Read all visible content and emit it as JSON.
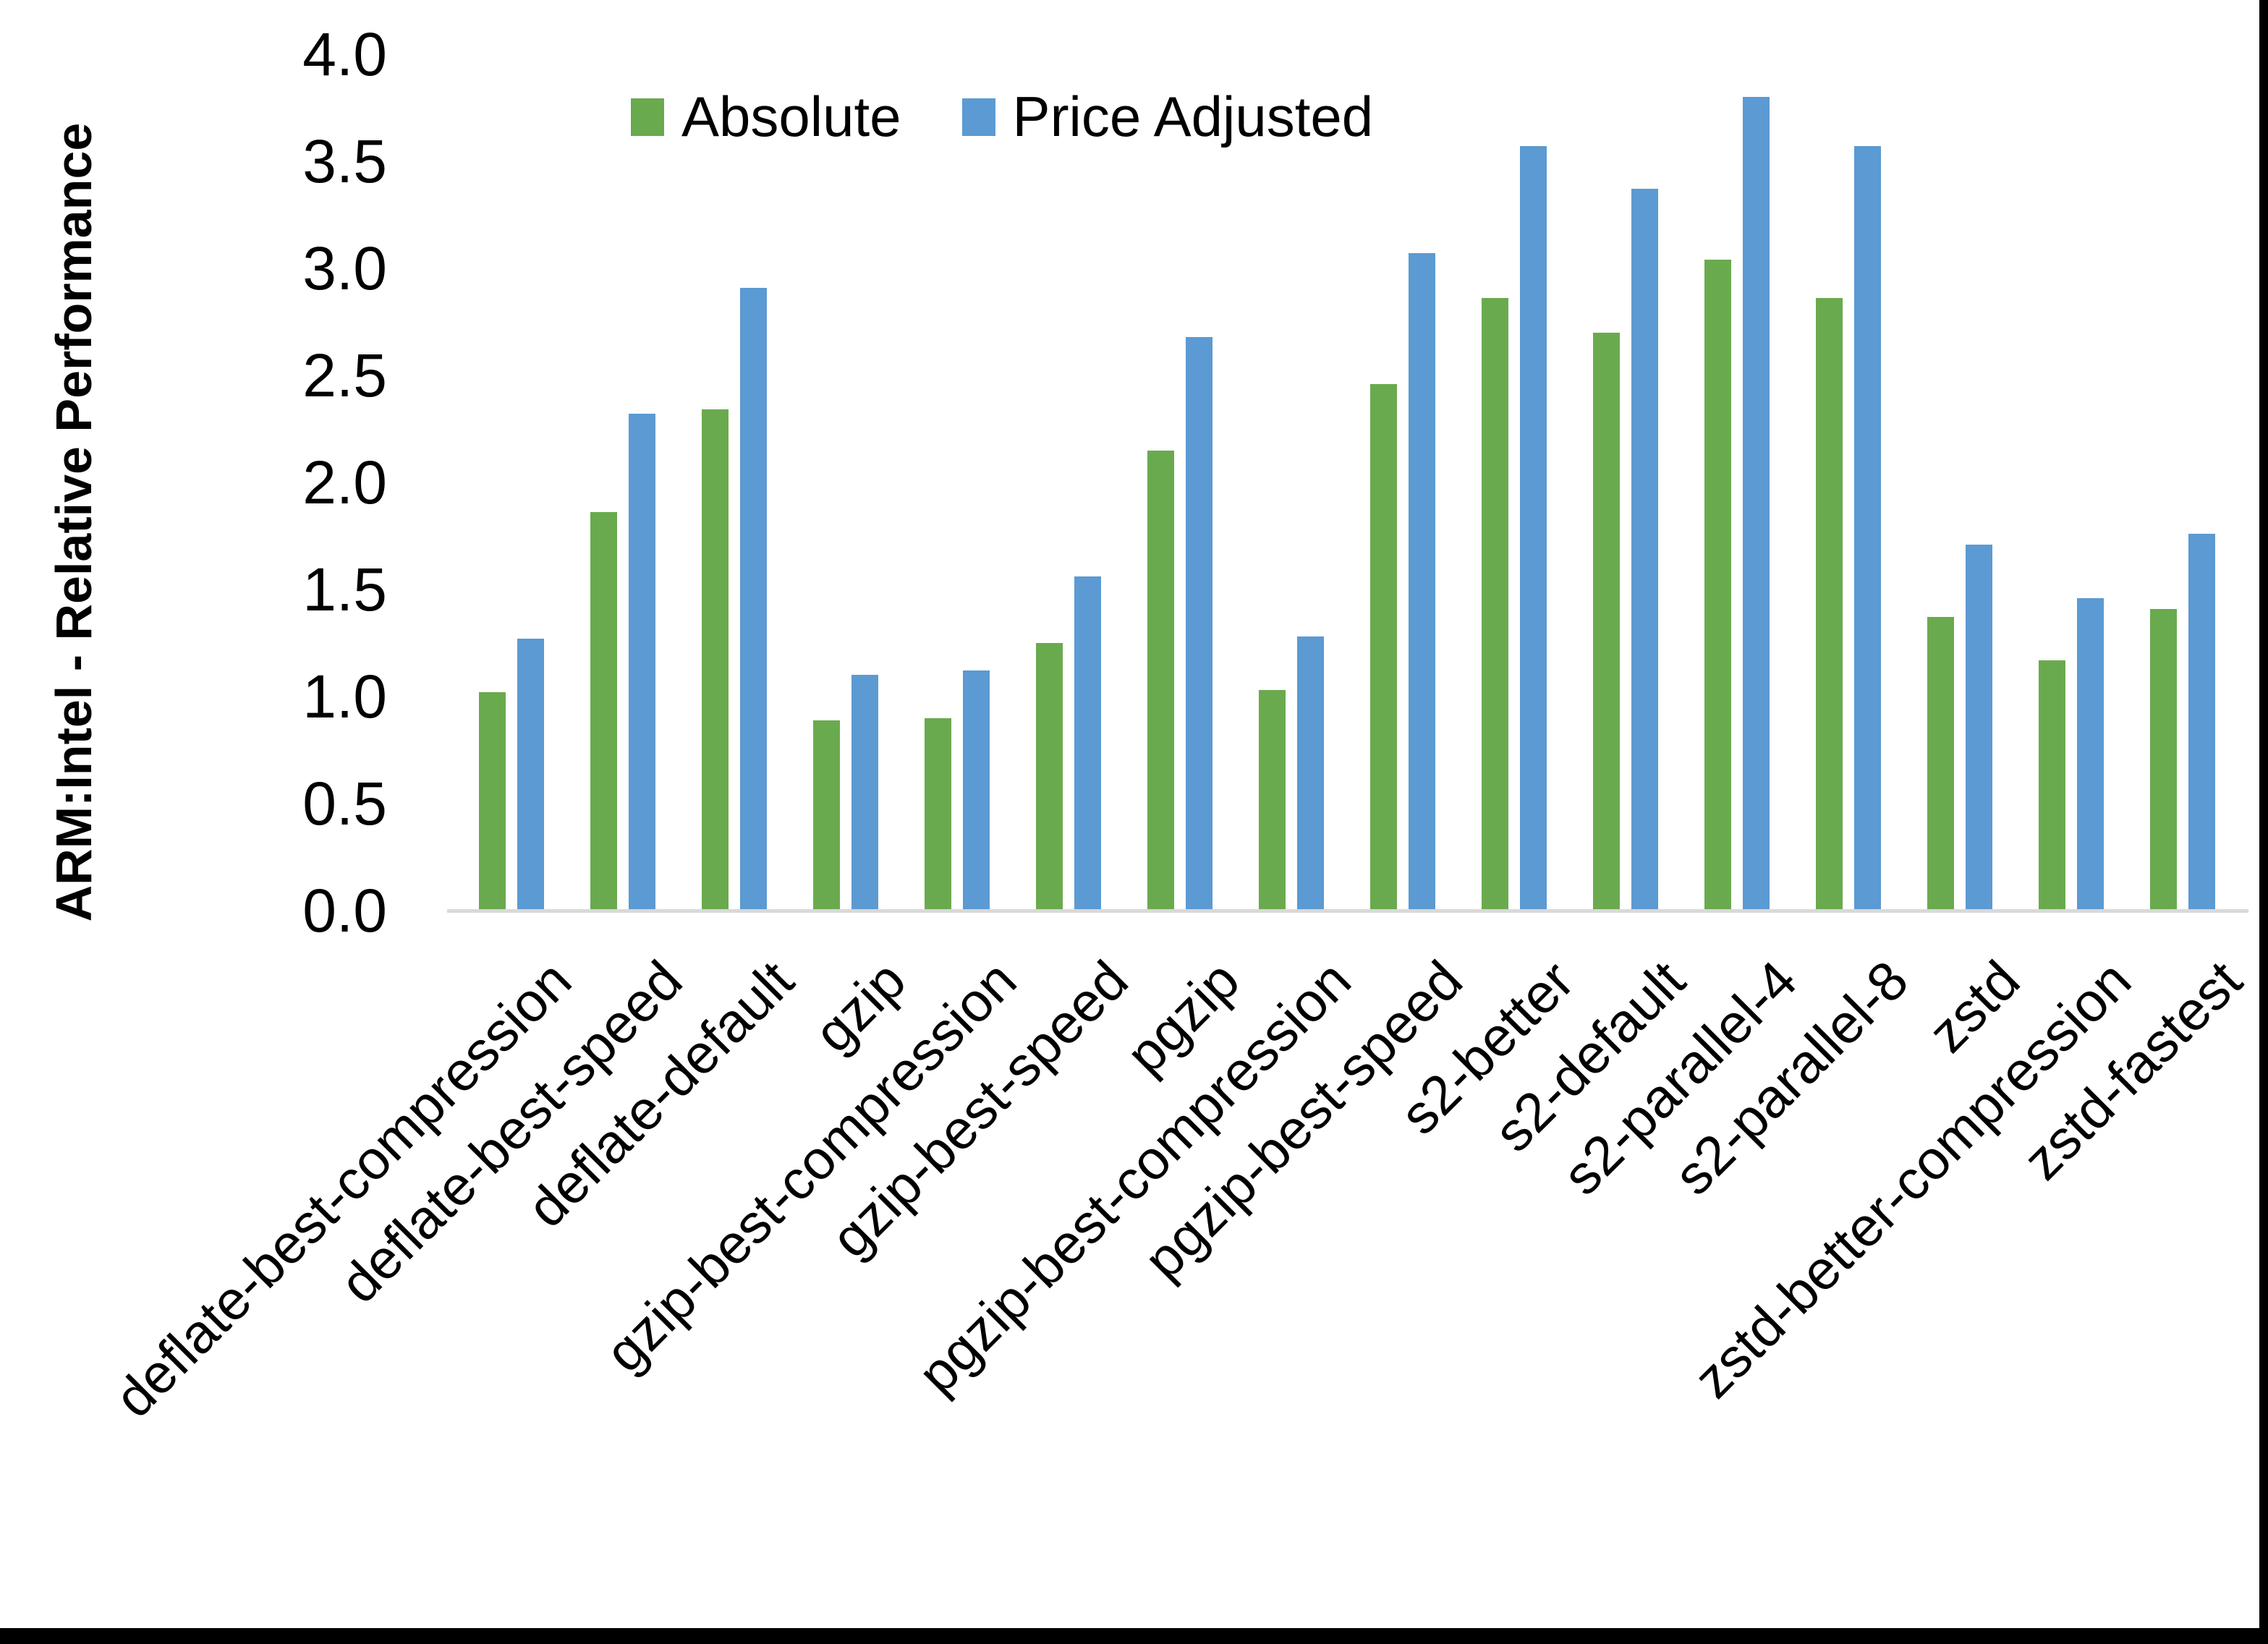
{
  "page": {
    "background": "#FFFFFF",
    "border_color": "#000000"
  },
  "chart_data": {
    "type": "bar",
    "title": "",
    "xlabel": "",
    "ylabel": "ARM:Intel - Relative Performance",
    "ylim": [
      0,
      4
    ],
    "ytick_step": 0.5,
    "ytick_labels": [
      "0.0",
      "0.5",
      "1.0",
      "1.5",
      "2.0",
      "2.5",
      "3.0",
      "3.5",
      "4.0"
    ],
    "grid": false,
    "legend_position": "top-center",
    "axis_line_color": "#D9D9D9",
    "categories": [
      "deflate-best-compression",
      "deflate-best-speed",
      "deflate-default",
      "gzip",
      "gzip-best-compression",
      "gzip-best-speed",
      "pgzip",
      "pgzip-best-compression",
      "pgzip-best-speed",
      "s2-better",
      "s2-default",
      "s2-parallel-4",
      "s2-parallel-8",
      "zstd",
      "zstd-better-compression",
      "zstd-fastest"
    ],
    "series": [
      {
        "name": "Absolute",
        "color": "#6AAA4E",
        "values": [
          1.02,
          1.86,
          2.34,
          0.89,
          0.9,
          1.25,
          2.15,
          1.03,
          2.46,
          2.86,
          2.7,
          3.04,
          2.86,
          1.37,
          1.17,
          1.41
        ]
      },
      {
        "name": "Price Adjusted",
        "color": "#5B9AD2",
        "values": [
          1.27,
          2.32,
          2.91,
          1.1,
          1.12,
          1.56,
          2.68,
          1.28,
          3.07,
          3.57,
          3.37,
          3.8,
          3.57,
          1.71,
          1.46,
          1.76
        ]
      }
    ]
  }
}
